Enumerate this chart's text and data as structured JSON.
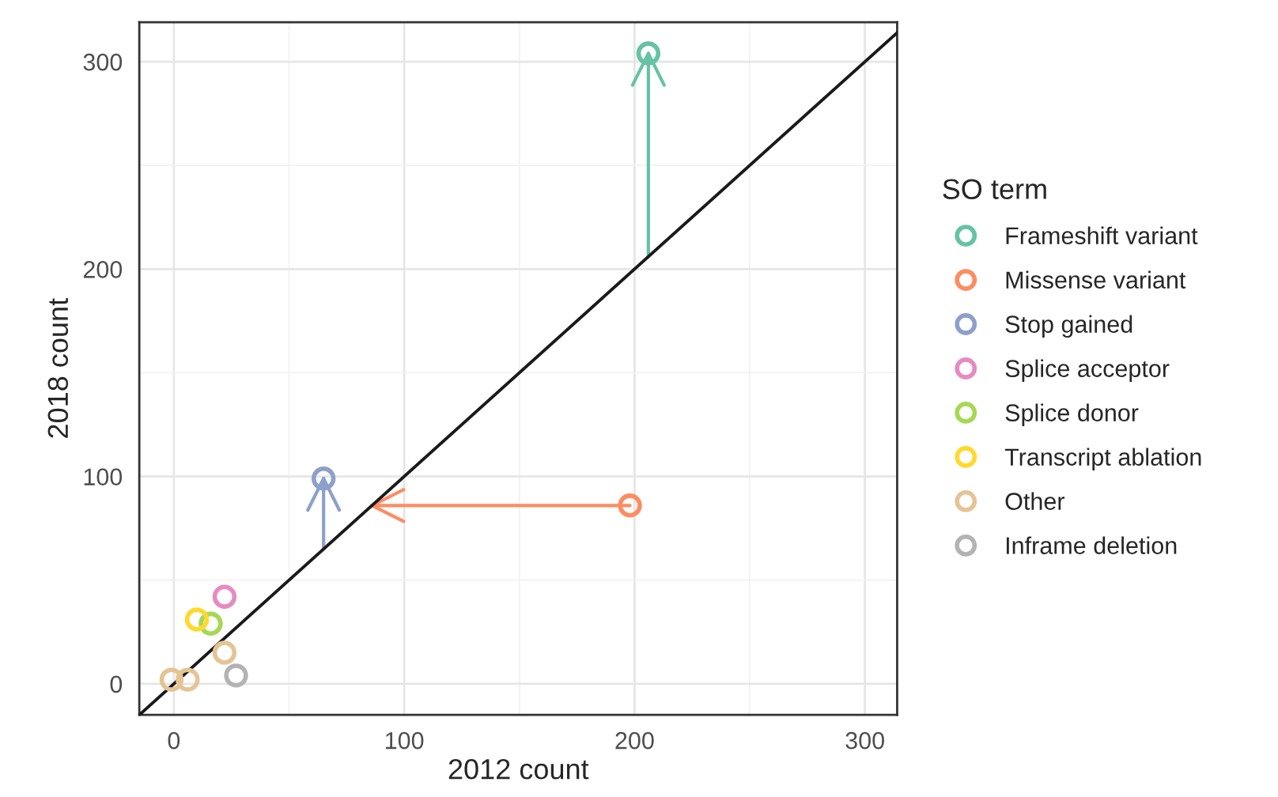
{
  "chart_data": {
    "type": "scatter",
    "xlabel": "2012 count",
    "ylabel": "2018 count",
    "legend_title": "SO term",
    "xlim": [
      -15,
      314
    ],
    "ylim": [
      -15,
      319
    ],
    "xticks": [
      0,
      100,
      200,
      300
    ],
    "yticks": [
      0,
      100,
      200,
      300
    ],
    "grid": true,
    "legend": "right",
    "marker": "circle",
    "series": [
      {
        "type": "line",
        "marker": "none",
        "color": "#1a1a1a",
        "x": [
          -15,
          314
        ],
        "values": [
          -15,
          314
        ]
      },
      {
        "type": "line",
        "marker": "none",
        "color": "#66c2a5",
        "x": [
          206,
          206
        ],
        "values": [
          206,
          304
        ]
      },
      {
        "type": "line",
        "marker": "none",
        "color": "#fc8d62",
        "x": [
          198,
          86
        ],
        "values": [
          86,
          86
        ]
      },
      {
        "type": "line",
        "marker": "none",
        "color": "#8da0cb",
        "x": [
          65,
          65
        ],
        "values": [
          65,
          99
        ]
      },
      {
        "name": "Frameshift variant",
        "color": "#66c2a5",
        "x": [
          206
        ],
        "values": [
          304
        ]
      },
      {
        "name": "Missense variant",
        "color": "#fc8d62",
        "x": [
          198
        ],
        "values": [
          86
        ]
      },
      {
        "name": "Stop gained",
        "color": "#8da0cb",
        "x": [
          65
        ],
        "values": [
          99
        ]
      },
      {
        "name": "Splice acceptor",
        "color": "#e78ac3",
        "x": [
          22
        ],
        "values": [
          42
        ]
      },
      {
        "name": "Splice donor",
        "color": "#a6d854",
        "x": [
          16
        ],
        "values": [
          29
        ]
      },
      {
        "name": "Transcript ablation",
        "color": "#ffd92f",
        "x": [
          10
        ],
        "values": [
          31
        ]
      },
      {
        "name": "Other",
        "color": "#e5c494",
        "x": [
          -1,
          6,
          22
        ],
        "values": [
          2,
          2,
          15
        ]
      },
      {
        "name": "Inframe deletion",
        "color": "#b3b3b3",
        "x": [
          27
        ],
        "values": [
          4
        ]
      }
    ]
  }
}
